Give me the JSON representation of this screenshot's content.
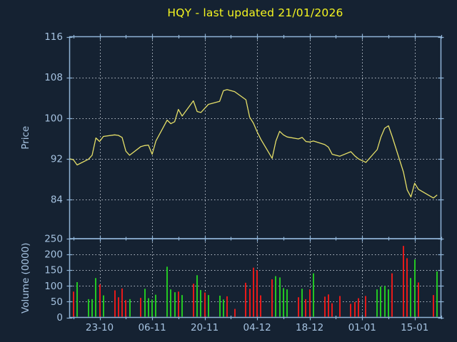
{
  "title": {
    "text": "HQY - last updated 21/01/2026",
    "color": "#f5f520"
  },
  "colors": {
    "background": "#152232",
    "axis_border": "#8fb3d6",
    "tick_label": "#a5c2e0",
    "grid": "#b6bfc9",
    "price_line": "#e5df68",
    "volume_up": "#23c723",
    "volume_down": "#e51a1a",
    "title_yellow": "#f5f520"
  },
  "chart_data": [
    {
      "type": "line",
      "panel": "price",
      "title": "HQY - last updated 21/01/2026",
      "ylabel": "Price",
      "yticks": [
        84,
        92,
        100,
        108,
        116
      ],
      "ylim": [
        76.3,
        116
      ],
      "grid": "on",
      "xtick_labels": [
        "23-10",
        "06-11",
        "20-11",
        "04-12",
        "18-12",
        "01-01",
        "15-01"
      ],
      "xtick_days": [
        8,
        22,
        36,
        50,
        64,
        78,
        92
      ],
      "minor_tick_days": [
        1,
        15,
        29,
        43,
        57,
        71,
        85,
        99
      ],
      "xlim_days": [
        0,
        99
      ],
      "points": [
        [
          0,
          92.0
        ],
        [
          1,
          91.8
        ],
        [
          2,
          90.8
        ],
        [
          5,
          91.9
        ],
        [
          6,
          92.7
        ],
        [
          7,
          96.1
        ],
        [
          8,
          95.4
        ],
        [
          9,
          96.4
        ],
        [
          12,
          96.7
        ],
        [
          13,
          96.6
        ],
        [
          14,
          96.2
        ],
        [
          15,
          93.5
        ],
        [
          16,
          92.7
        ],
        [
          19,
          94.4
        ],
        [
          20,
          94.6
        ],
        [
          21,
          94.7
        ],
        [
          22,
          92.9
        ],
        [
          23,
          95.5
        ],
        [
          26,
          99.6
        ],
        [
          27,
          98.9
        ],
        [
          28,
          99.3
        ],
        [
          29,
          101.7
        ],
        [
          30,
          100.4
        ],
        [
          33,
          103.4
        ],
        [
          34,
          101.3
        ],
        [
          35,
          101.1
        ],
        [
          36,
          101.9
        ],
        [
          37,
          102.7
        ],
        [
          40,
          103.3
        ],
        [
          41,
          105.4
        ],
        [
          42,
          105.6
        ],
        [
          44,
          105.2
        ],
        [
          47,
          103.6
        ],
        [
          48,
          100.2
        ],
        [
          49,
          99.0
        ],
        [
          50,
          97.3
        ],
        [
          51,
          95.8
        ],
        [
          54,
          92.1
        ],
        [
          55,
          95.5
        ],
        [
          56,
          97.4
        ],
        [
          57,
          96.7
        ],
        [
          58,
          96.3
        ],
        [
          61,
          95.9
        ],
        [
          62,
          96.2
        ],
        [
          63,
          95.4
        ],
        [
          64,
          95.3
        ],
        [
          65,
          95.5
        ],
        [
          68,
          94.8
        ],
        [
          69,
          94.3
        ],
        [
          70,
          92.9
        ],
        [
          72,
          92.5
        ],
        [
          75,
          93.4
        ],
        [
          76,
          92.6
        ],
        [
          77,
          92.0
        ],
        [
          79,
          91.3
        ],
        [
          82,
          93.8
        ],
        [
          83,
          96.3
        ],
        [
          84,
          98.0
        ],
        [
          85,
          98.5
        ],
        [
          86,
          96.4
        ],
        [
          89,
          89.4
        ],
        [
          90,
          85.9
        ],
        [
          91,
          84.5
        ],
        [
          92,
          87.2
        ],
        [
          93,
          86.0
        ],
        [
          97,
          84.3
        ],
        [
          98,
          84.9
        ]
      ]
    },
    {
      "type": "bar",
      "panel": "volume",
      "ylabel": "Volume (0000)",
      "yticks": [
        0,
        50,
        100,
        150,
        200,
        250
      ],
      "ylim": [
        0,
        250
      ],
      "grid": "on",
      "bars": [
        [
          1,
          82,
          "r"
        ],
        [
          2,
          112,
          "g"
        ],
        [
          5,
          58,
          "g"
        ],
        [
          6,
          58,
          "g"
        ],
        [
          7,
          125,
          "g"
        ],
        [
          8,
          105,
          "r"
        ],
        [
          9,
          70,
          "g"
        ],
        [
          12,
          86,
          "r"
        ],
        [
          13,
          64,
          "r"
        ],
        [
          14,
          92,
          "r"
        ],
        [
          15,
          55,
          "r"
        ],
        [
          16,
          58,
          "g"
        ],
        [
          19,
          62,
          "r"
        ],
        [
          20,
          91,
          "g"
        ],
        [
          21,
          61,
          "g"
        ],
        [
          22,
          57,
          "g"
        ],
        [
          23,
          72,
          "g"
        ],
        [
          26,
          161,
          "g"
        ],
        [
          27,
          89,
          "g"
        ],
        [
          28,
          80,
          "g"
        ],
        [
          29,
          82,
          "r"
        ],
        [
          30,
          71,
          "g"
        ],
        [
          33,
          107,
          "r"
        ],
        [
          34,
          134,
          "g"
        ],
        [
          35,
          87,
          "g"
        ],
        [
          36,
          79,
          "r"
        ],
        [
          37,
          71,
          "g"
        ],
        [
          40,
          69,
          "g"
        ],
        [
          41,
          57,
          "g"
        ],
        [
          42,
          67,
          "r"
        ],
        [
          44,
          27,
          "r"
        ],
        [
          47,
          110,
          "r"
        ],
        [
          48,
          91,
          "r"
        ],
        [
          49,
          158,
          "r"
        ],
        [
          50,
          150,
          "r"
        ],
        [
          51,
          70,
          "r"
        ],
        [
          54,
          121,
          "r"
        ],
        [
          55,
          131,
          "g"
        ],
        [
          56,
          127,
          "g"
        ],
        [
          57,
          93,
          "g"
        ],
        [
          58,
          89,
          "g"
        ],
        [
          61,
          64,
          "r"
        ],
        [
          62,
          91,
          "g"
        ],
        [
          63,
          58,
          "r"
        ],
        [
          64,
          89,
          "r"
        ],
        [
          65,
          140,
          "g"
        ],
        [
          68,
          66,
          "r"
        ],
        [
          69,
          73,
          "r"
        ],
        [
          70,
          45,
          "r"
        ],
        [
          72,
          68,
          "r"
        ],
        [
          75,
          43,
          "r"
        ],
        [
          76,
          49,
          "r"
        ],
        [
          77,
          61,
          "r"
        ],
        [
          79,
          68,
          "r"
        ],
        [
          82,
          89,
          "g"
        ],
        [
          83,
          98,
          "g"
        ],
        [
          84,
          100,
          "g"
        ],
        [
          85,
          89,
          "g"
        ],
        [
          86,
          140,
          "r"
        ],
        [
          89,
          227,
          "r"
        ],
        [
          90,
          188,
          "r"
        ],
        [
          91,
          125,
          "g"
        ],
        [
          92,
          184,
          "g"
        ],
        [
          93,
          111,
          "r"
        ],
        [
          97,
          71,
          "r"
        ],
        [
          98,
          146,
          "g"
        ]
      ]
    }
  ]
}
